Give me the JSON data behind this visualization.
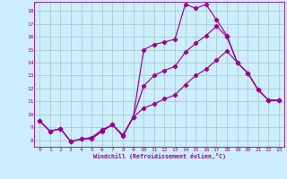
{
  "xlabel": "Windchill (Refroidissement éolien,°C)",
  "bg_color": "#cceeff",
  "grid_color": "#aacccc",
  "line_color": "#990099",
  "xlim": [
    -0.5,
    23.5
  ],
  "ylim": [
    7.5,
    18.7
  ],
  "xticks": [
    0,
    1,
    2,
    3,
    4,
    5,
    6,
    7,
    8,
    9,
    10,
    11,
    12,
    13,
    14,
    15,
    16,
    17,
    18,
    19,
    20,
    21,
    22,
    23
  ],
  "yticks": [
    8,
    9,
    10,
    11,
    12,
    13,
    14,
    15,
    16,
    17,
    18
  ],
  "line1_x": [
    0,
    1,
    2,
    3,
    4,
    5,
    6,
    7,
    8,
    9,
    10,
    11,
    12,
    13,
    14,
    15,
    16,
    17,
    18,
    19,
    20,
    21,
    22,
    23
  ],
  "line1_y": [
    9.5,
    8.7,
    8.9,
    7.9,
    8.1,
    8.1,
    8.7,
    9.2,
    8.3,
    9.8,
    15.0,
    15.4,
    15.6,
    15.8,
    18.5,
    18.2,
    18.5,
    17.3,
    16.1,
    14.0,
    13.2,
    11.9,
    11.1,
    11.1
  ],
  "line2_x": [
    0,
    1,
    2,
    3,
    4,
    5,
    6,
    7,
    8,
    9,
    10,
    11,
    12,
    13,
    14,
    15,
    16,
    17,
    18,
    19,
    20,
    21,
    22,
    23
  ],
  "line2_y": [
    9.5,
    8.7,
    8.9,
    7.9,
    8.1,
    8.2,
    8.8,
    9.2,
    8.4,
    9.8,
    12.2,
    13.0,
    13.4,
    13.7,
    14.8,
    15.5,
    16.1,
    16.8,
    16.0,
    14.0,
    13.2,
    11.9,
    11.1,
    11.1
  ],
  "line3_x": [
    0,
    1,
    2,
    3,
    4,
    5,
    6,
    7,
    8,
    9,
    10,
    11,
    12,
    13,
    14,
    15,
    16,
    17,
    18,
    19,
    20,
    21,
    22,
    23
  ],
  "line3_y": [
    9.5,
    8.7,
    8.9,
    7.9,
    8.1,
    8.2,
    8.8,
    9.2,
    8.4,
    9.8,
    10.5,
    10.8,
    11.2,
    11.5,
    12.3,
    13.0,
    13.5,
    14.2,
    14.9,
    14.0,
    13.2,
    11.9,
    11.1,
    11.1
  ]
}
